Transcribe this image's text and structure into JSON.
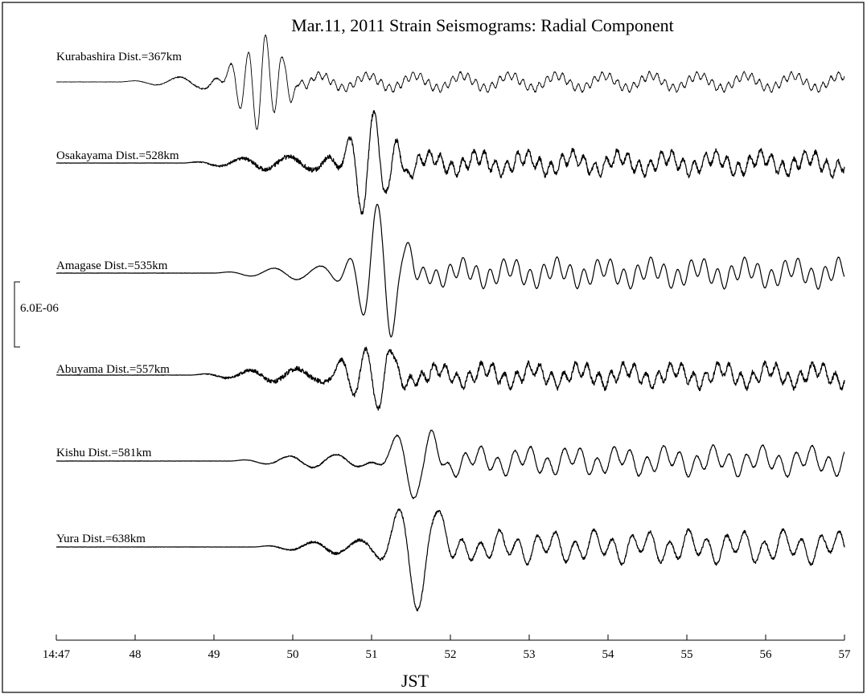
{
  "chart_data": {
    "type": "line",
    "title": "Mar.11, 2011   Strain Seismograms: Radial  Component",
    "xlabel": "JST",
    "ylabel": "",
    "x_ticks": [
      "14:47",
      "48",
      "49",
      "50",
      "51",
      "52",
      "53",
      "54",
      "55",
      "56",
      "57"
    ],
    "xlim": [
      "14:47",
      "14:57"
    ],
    "scale_bar": {
      "label": "6.0E-06",
      "value": 6e-06
    },
    "grid": false,
    "legend": "none",
    "line_color": "#000000",
    "series": [
      {
        "station": "Kurabashira",
        "label": "Kurabashira  Dist.=367km",
        "distance_km": 367,
        "onset_min": 47.8,
        "peak_min": 49.6,
        "peak_amp": 1.4,
        "late_amp": 0.12,
        "noise": 0.15,
        "period_min": 0.1
      },
      {
        "station": "Osakayama",
        "label": "Osakayama Dist.=528km",
        "distance_km": 528,
        "onset_min": 48.6,
        "peak_min": 51.0,
        "peak_amp": 1.55,
        "late_amp": 0.22,
        "noise": 0.4,
        "period_min": 0.14
      },
      {
        "station": "Amagase",
        "label": "Amagase Dist.=535km",
        "distance_km": 535,
        "onset_min": 49.0,
        "peak_min": 51.1,
        "peak_amp": 2.1,
        "late_amp": 0.3,
        "noise": 0.05,
        "period_min": 0.17
      },
      {
        "station": "Abuyama",
        "label": "Abuyama Dist.=557km",
        "distance_km": 557,
        "onset_min": 48.7,
        "peak_min": 51.0,
        "peak_amp": 1.05,
        "late_amp": 0.22,
        "noise": 0.4,
        "period_min": 0.15
      },
      {
        "station": "Kishu",
        "label": "Kishu Dist.=581km",
        "distance_km": 581,
        "onset_min": 49.2,
        "peak_min": 51.5,
        "peak_amp": 1.1,
        "late_amp": 0.3,
        "noise": 0.12,
        "period_min": 0.21
      },
      {
        "station": "Yura",
        "label": "Yura Dist.=638km",
        "distance_km": 638,
        "onset_min": 49.5,
        "peak_min": 51.6,
        "peak_amp": 2.0,
        "late_amp": 0.35,
        "noise": 0.25,
        "period_min": 0.24
      }
    ]
  }
}
